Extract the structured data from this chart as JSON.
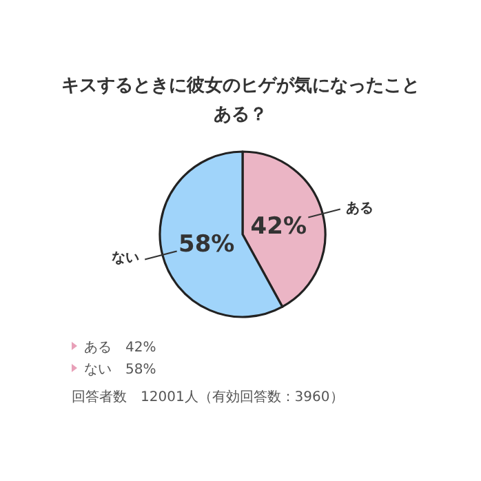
{
  "chart_data": {
    "type": "pie",
    "title": "キスするときに彼女のヒゲが気になったことある？",
    "categories": [
      "ある",
      "ない"
    ],
    "values": [
      42,
      58
    ],
    "value_labels": [
      "42%",
      "58%"
    ],
    "colors": [
      "#ebb5c5",
      "#a0d4fa"
    ],
    "annotations": [
      "ある　42%",
      "ない　58%",
      "回答者数　12001人（有効回答数：3960）"
    ]
  }
}
